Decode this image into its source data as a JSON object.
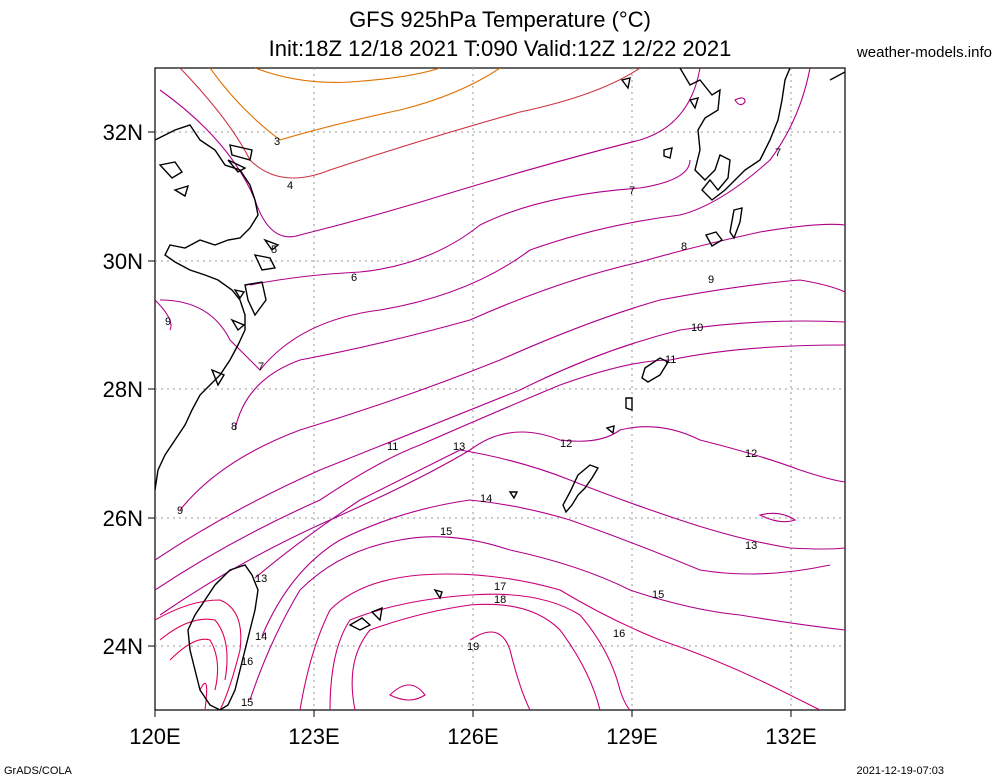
{
  "title": {
    "line1": "GFS 925hPa Temperature (°C)",
    "line2": "Init:18Z 12/18 2021 T:090 Valid:12Z 12/22 2021"
  },
  "site": "weather-models.info",
  "footer": {
    "left": "GrADS/COLA",
    "right": "2021-12-19-07:03"
  },
  "axes": {
    "lat_labels": [
      "32N",
      "30N",
      "28N",
      "26N",
      "24N"
    ],
    "lon_labels": [
      "120E",
      "123E",
      "126E",
      "129E",
      "132E"
    ]
  },
  "contour_labels": [
    "3",
    "4",
    "5",
    "6",
    "7",
    "7",
    "7",
    "8",
    "8",
    "9",
    "9",
    "9",
    "10",
    "11",
    "11",
    "12",
    "12",
    "13",
    "13",
    "13",
    "14",
    "14",
    "15",
    "15",
    "15",
    "16",
    "16",
    "17",
    "18",
    "19"
  ],
  "colors": {
    "cold": "#e07000",
    "cool": "#cc3344",
    "mid": "#b0008a",
    "warm": "#cc0077",
    "hot": "#e0005a",
    "coast": "#000000"
  }
}
